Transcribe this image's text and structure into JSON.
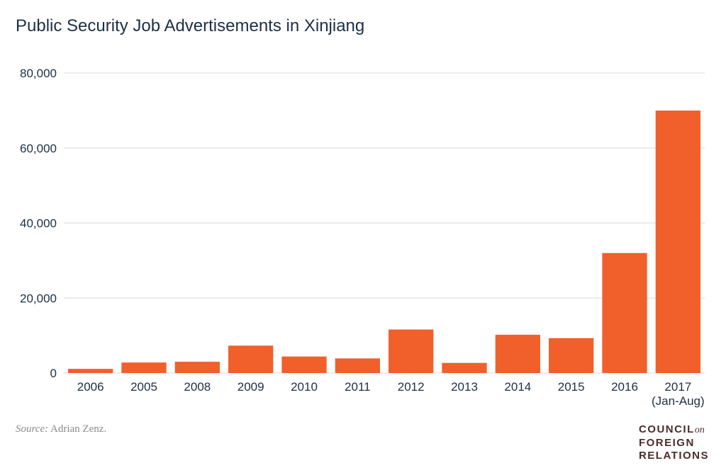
{
  "chart_data": {
    "type": "bar",
    "title": "Public Security Job Advertisements in Xinjiang",
    "categories": [
      [
        "2006"
      ],
      [
        "2005"
      ],
      [
        "2008"
      ],
      [
        "2009"
      ],
      [
        "2010"
      ],
      [
        "2011"
      ],
      [
        "2012"
      ],
      [
        "2013"
      ],
      [
        "2014"
      ],
      [
        "2015"
      ],
      [
        "2016"
      ],
      [
        "2017",
        "(Jan-Aug)"
      ]
    ],
    "values": [
      1100,
      2800,
      3000,
      7300,
      4400,
      3900,
      11600,
      2700,
      10200,
      9300,
      32000,
      70000
    ],
    "ylim": [
      0,
      80000
    ],
    "yticks": [
      0,
      20000,
      40000,
      60000,
      80000
    ],
    "ytick_labels": [
      "0",
      "20,000",
      "40,000",
      "60,000",
      "80,000"
    ],
    "grid": true,
    "bar_color": "#f15f2a"
  },
  "footer": {
    "source_label": "Source:",
    "source_text": " Adrian Zenz."
  },
  "logo": {
    "line1": "COUNCIL",
    "line1_suffix": "on",
    "line2": "FOREIGN",
    "line3": "RELATIONS"
  }
}
